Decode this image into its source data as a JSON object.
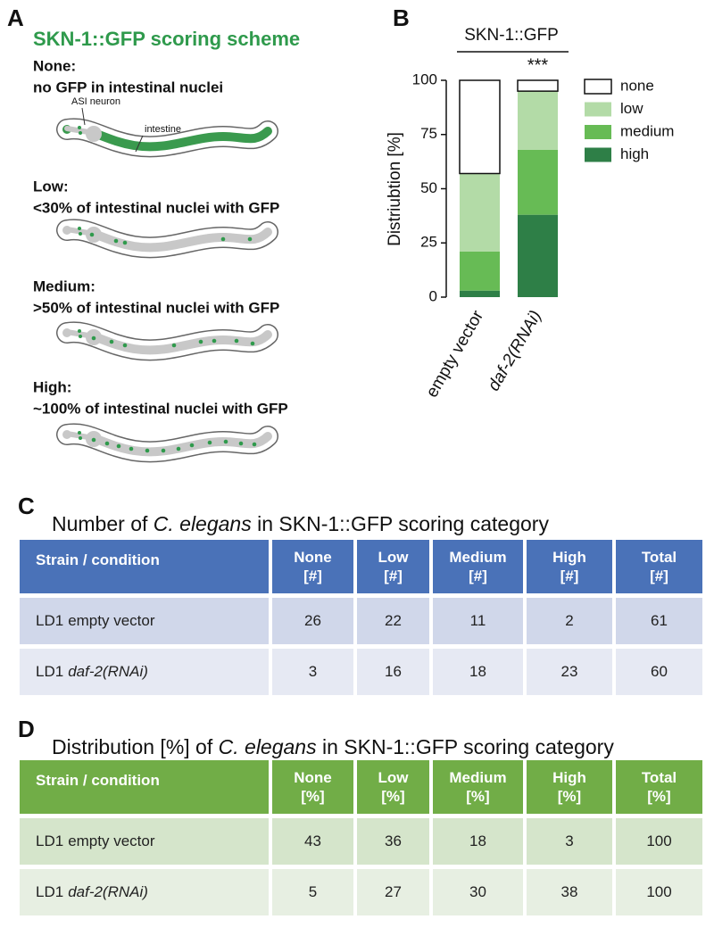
{
  "panel_a": {
    "letter": "A",
    "title": "SKN-1::GFP scoring scheme",
    "labels": {
      "neuron": "ASI neuron",
      "intestine": "intestine"
    },
    "levels": [
      {
        "heading": "None:",
        "description": "no GFP in intestinal nuclei"
      },
      {
        "heading": "Low:",
        "description": "<30% of intestinal nuclei with GFP"
      },
      {
        "heading": "Medium:",
        "description": ">50% of intestinal nuclei with GFP"
      },
      {
        "heading": "High:",
        "description": "~100% of intestinal nuclei with GFP"
      }
    ]
  },
  "chart_data": {
    "type": "stacked_bar",
    "letter": "B",
    "title": "SKN-1::GFP",
    "annotation": "***",
    "ylabel": "Distriubtion [%]",
    "categories": [
      "empty vector",
      "daf-2(RNAi)"
    ],
    "category_styles": [
      "normal",
      "italic"
    ],
    "series": [
      {
        "name": "none",
        "color": "#ffffff",
        "values": [
          43,
          5
        ]
      },
      {
        "name": "low",
        "color": "#b3dba7",
        "values": [
          36,
          27
        ]
      },
      {
        "name": "medium",
        "color": "#67bb55",
        "values": [
          18,
          30
        ]
      },
      {
        "name": "high",
        "color": "#2e7f47",
        "values": [
          3,
          38
        ]
      }
    ],
    "ylim": [
      0,
      100
    ],
    "yticks": [
      0,
      25,
      50,
      75,
      100
    ],
    "legend": "right"
  },
  "table_c": {
    "letter": "C",
    "title": [
      "Number of ",
      "C. elegans",
      " in SKN-1::GFP scoring category"
    ],
    "header_color": "#4a72b8",
    "row_colors": [
      "#d0d7ea",
      "#e6e9f3"
    ],
    "columns": [
      [
        "Strain / condition"
      ],
      [
        "None",
        "[#]"
      ],
      [
        "Low",
        "[#]"
      ],
      [
        "Medium",
        "[#]"
      ],
      [
        "High",
        "[#]"
      ],
      [
        "Total",
        "[#]"
      ]
    ],
    "rows": [
      {
        "strain": "LD1",
        "condition": "empty vector",
        "condition_style": "normal",
        "values": [
          26,
          22,
          11,
          2,
          61
        ]
      },
      {
        "strain": "LD1",
        "condition": "daf-2(RNAi)",
        "condition_style": "italic",
        "values": [
          3,
          16,
          18,
          23,
          60
        ]
      }
    ]
  },
  "table_d": {
    "letter": "D",
    "title": [
      "Distribution [%] of ",
      "C. elegans",
      " in SKN-1::GFP scoring category"
    ],
    "header_color": "#71ad47",
    "row_colors": [
      "#d5e5cb",
      "#e7efe2"
    ],
    "columns": [
      [
        "Strain / condition"
      ],
      [
        "None",
        "[%]"
      ],
      [
        "Low",
        "[%]"
      ],
      [
        "Medium",
        "[%]"
      ],
      [
        "High",
        "[%]"
      ],
      [
        "Total",
        "[%]"
      ]
    ],
    "rows": [
      {
        "strain": "LD1",
        "condition": "empty vector",
        "condition_style": "normal",
        "values": [
          43,
          36,
          18,
          3,
          100
        ]
      },
      {
        "strain": "LD1",
        "condition": "daf-2(RNAi)",
        "condition_style": "italic",
        "values": [
          5,
          27,
          30,
          38,
          100
        ]
      }
    ]
  }
}
